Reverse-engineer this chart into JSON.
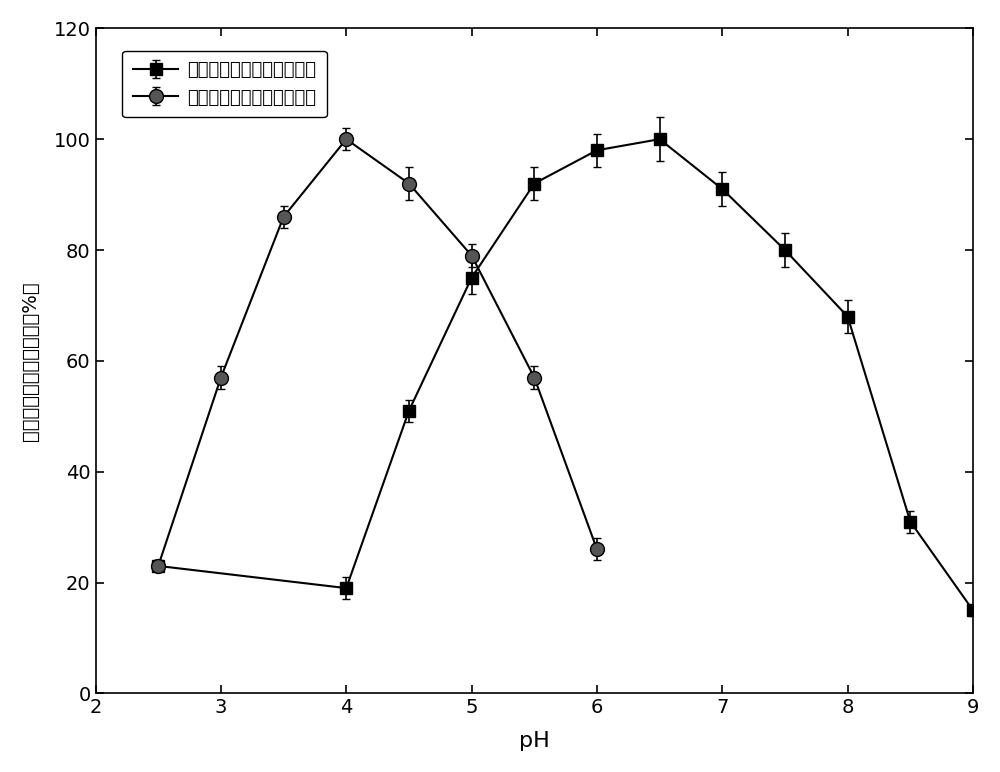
{
  "series1_label": "新型葡糖淀粉酶相对酶活力",
  "series2_label": "原始葡糖淀粉酶相对酶活力",
  "series1_x": [
    2.5,
    4.0,
    4.5,
    5.0,
    5.5,
    6.0,
    6.5,
    7.0,
    7.5,
    8.0,
    8.5,
    9.0
  ],
  "series1_y": [
    23,
    19,
    51,
    75,
    92,
    98,
    100,
    91,
    80,
    68,
    31,
    15
  ],
  "series1_yerr": [
    1,
    2,
    2,
    3,
    3,
    3,
    4,
    3,
    3,
    3,
    2,
    1
  ],
  "series2_x": [
    2.5,
    3.0,
    3.5,
    4.0,
    4.5,
    5.0,
    5.5,
    6.0
  ],
  "series2_y": [
    23,
    57,
    86,
    100,
    92,
    79,
    57,
    26
  ],
  "series2_yerr": [
    1,
    2,
    2,
    2,
    3,
    2,
    2,
    2
  ],
  "xlabel": "pH",
  "ylabel": "葡糖淀粉酶相对酶活力（%）",
  "xlim": [
    2,
    9
  ],
  "ylim": [
    0,
    120
  ],
  "xticks": [
    2,
    3,
    4,
    5,
    6,
    7,
    8,
    9
  ],
  "yticks": [
    0,
    20,
    40,
    60,
    80,
    100,
    120
  ],
  "marker1": "s",
  "marker2": "o",
  "color": "#000000",
  "marker2_facecolor": "#555555",
  "background_color": "#ffffff",
  "figsize": [
    10.0,
    7.72
  ],
  "dpi": 100
}
